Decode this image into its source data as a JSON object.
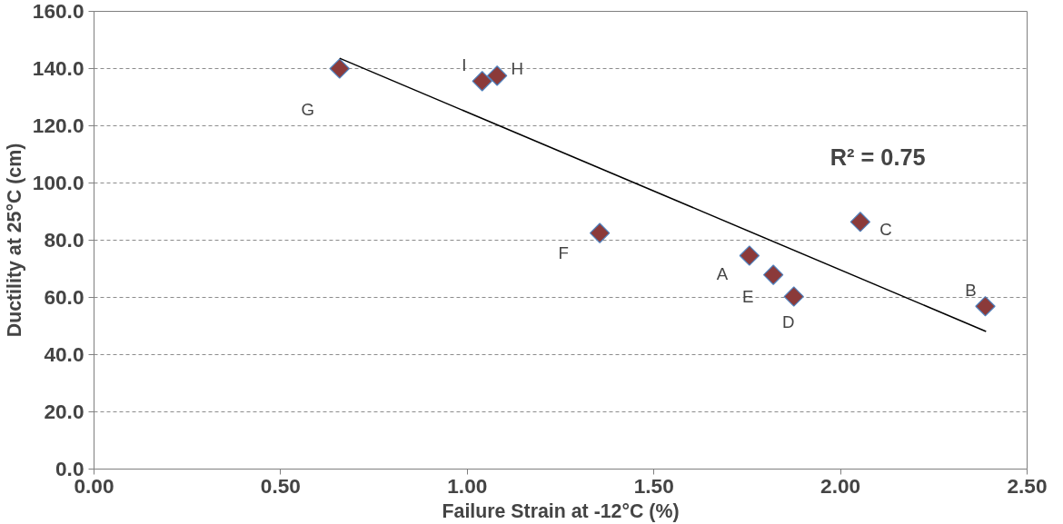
{
  "chart_data": {
    "type": "scatter",
    "xlabel": "Failure Strain at -12°C (%)",
    "ylabel": "Ductility at 25°C (cm)",
    "xlim": [
      0,
      2.5
    ],
    "ylim": [
      0,
      160
    ],
    "xticks": [
      {
        "value": 0,
        "label": "0.00"
      },
      {
        "value": 0.5,
        "label": "0.50"
      },
      {
        "value": 1,
        "label": "1.00"
      },
      {
        "value": 1.5,
        "label": "1.50"
      },
      {
        "value": 2,
        "label": "2.00"
      },
      {
        "value": 2.5,
        "label": "2.50"
      }
    ],
    "yticks": [
      {
        "value": 0,
        "label": "0.0"
      },
      {
        "value": 20,
        "label": "20.0"
      },
      {
        "value": 40,
        "label": "40.0"
      },
      {
        "value": 60,
        "label": "60.0"
      },
      {
        "value": 80,
        "label": "80.0"
      },
      {
        "value": 100,
        "label": "100.0"
      },
      {
        "value": 120,
        "label": "120.0"
      },
      {
        "value": 140,
        "label": "140.0"
      },
      {
        "value": 160,
        "label": "160.0"
      }
    ],
    "grid": "y",
    "series": [
      {
        "marker": "diamond",
        "color": "#8b3a3a",
        "x": [
          1.756,
          2.388,
          2.053,
          1.875,
          1.82,
          1.355,
          0.658,
          1.08,
          1.04
        ],
        "values": [
          74.6,
          56.9,
          86.4,
          60.3,
          67.9,
          82.5,
          140,
          137.5,
          135.6
        ]
      },
      {
        "type": "line",
        "color": "#000000",
        "x": [
          0.658,
          2.39
        ],
        "values": [
          143.6,
          48.1
        ]
      }
    ],
    "annotations": [
      {
        "text": "A",
        "x": 1.756,
        "y": 74.6
      },
      {
        "text": "B",
        "x": 2.388,
        "y": 56.9
      },
      {
        "text": "C",
        "x": 2.053,
        "y": 86.4
      },
      {
        "text": "D",
        "x": 1.875,
        "y": 60.3
      },
      {
        "text": "E",
        "x": 1.82,
        "y": 67.9
      },
      {
        "text": "F",
        "x": 1.355,
        "y": 82.5
      },
      {
        "text": "G",
        "x": 0.658,
        "y": 140
      },
      {
        "text": "H",
        "x": 1.08,
        "y": 137.5
      },
      {
        "text": "I",
        "x": 1.04,
        "y": 135.6
      },
      "R² = 0.75"
    ]
  }
}
